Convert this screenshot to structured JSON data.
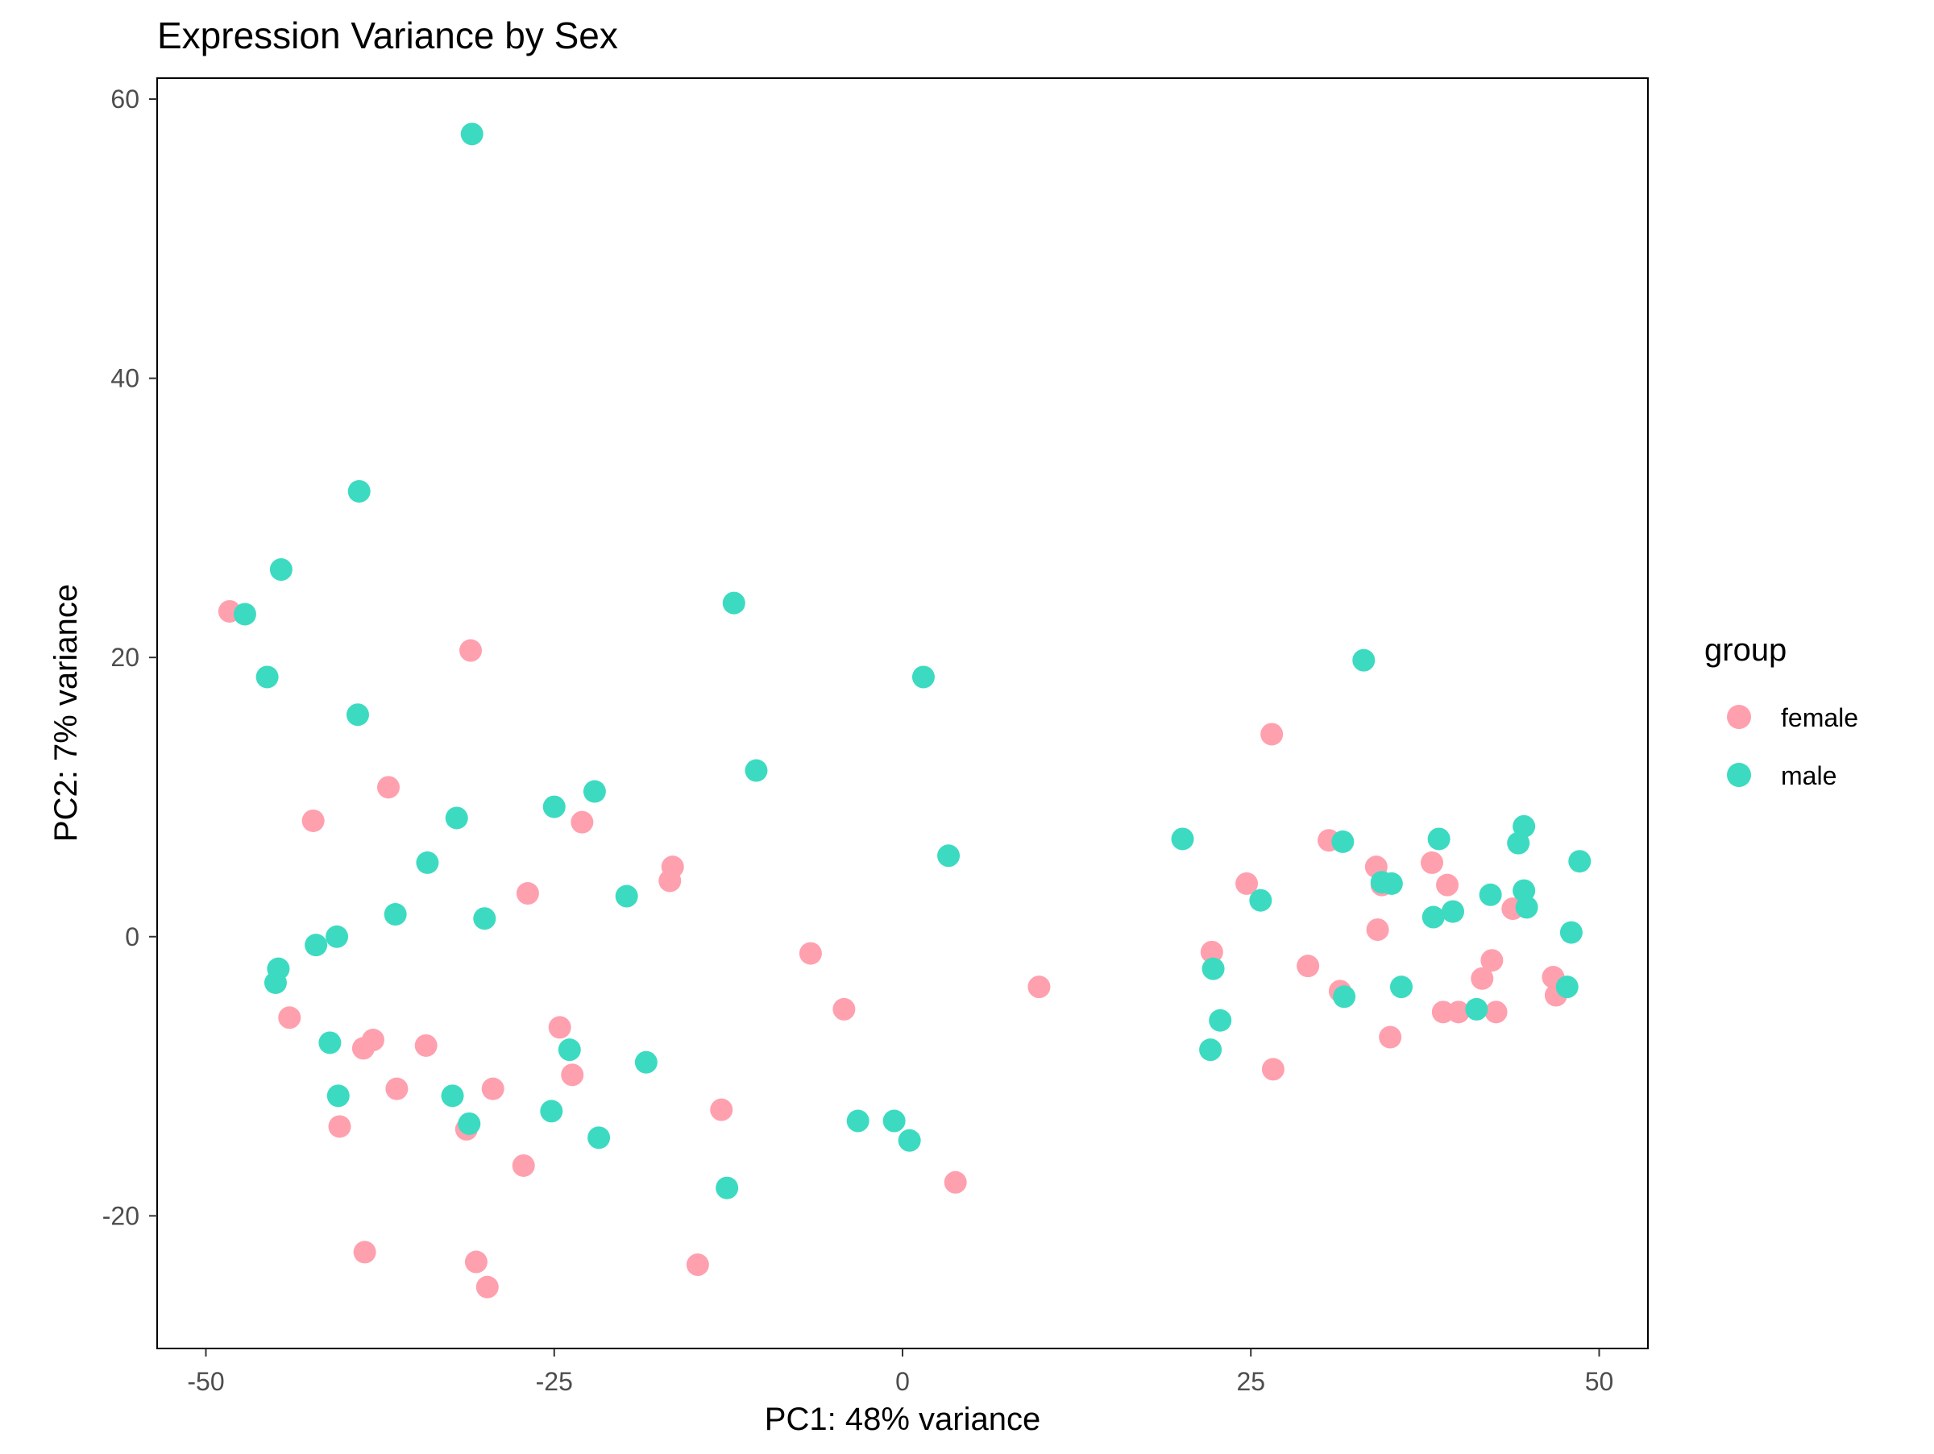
{
  "chart_data": {
    "type": "scatter",
    "title": "Expression Variance by Sex",
    "xlabel": "PC1: 48% variance",
    "ylabel": "PC2: 7% variance",
    "xlim": [
      -53.5,
      53.5
    ],
    "ylim": [
      -29.5,
      61.5
    ],
    "xticks": [
      -50,
      -25,
      0,
      25,
      50
    ],
    "yticks": [
      -20,
      0,
      20,
      40,
      60
    ],
    "grid": false,
    "legend": {
      "title": "group",
      "position": "right",
      "entries": [
        "female",
        "male"
      ]
    },
    "series": [
      {
        "name": "female",
        "color": "#FFA0AE",
        "points": [
          [
            -48.3,
            23.3
          ],
          [
            -31.0,
            20.5
          ],
          [
            -36.9,
            10.7
          ],
          [
            -42.3,
            8.3
          ],
          [
            -23.0,
            8.2
          ],
          [
            -16.5,
            5.0
          ],
          [
            -16.7,
            4.0
          ],
          [
            -26.9,
            3.1
          ],
          [
            -44.0,
            -5.8
          ],
          [
            -24.6,
            -6.5
          ],
          [
            -34.2,
            -7.8
          ],
          [
            -38.0,
            -7.4
          ],
          [
            -38.7,
            -8.0
          ],
          [
            -23.7,
            -9.9
          ],
          [
            -36.3,
            -10.9
          ],
          [
            -29.4,
            -10.9
          ],
          [
            -40.4,
            -13.6
          ],
          [
            -31.3,
            -13.8
          ],
          [
            -13.0,
            -12.4
          ],
          [
            -27.2,
            -16.4
          ],
          [
            -38.6,
            -22.6
          ],
          [
            -30.6,
            -23.3
          ],
          [
            -29.8,
            -25.1
          ],
          [
            -14.7,
            -23.5
          ],
          [
            -6.6,
            -1.2
          ],
          [
            -4.2,
            -5.2
          ],
          [
            9.8,
            -3.6
          ],
          [
            3.8,
            -17.6
          ],
          [
            26.5,
            14.5
          ],
          [
            30.6,
            6.9
          ],
          [
            24.7,
            3.8
          ],
          [
            34.0,
            5.0
          ],
          [
            34.4,
            3.7
          ],
          [
            38.0,
            5.3
          ],
          [
            39.1,
            3.7
          ],
          [
            39.5,
            1.8
          ],
          [
            34.1,
            0.5
          ],
          [
            43.8,
            2.0
          ],
          [
            22.2,
            -1.1
          ],
          [
            29.1,
            -2.1
          ],
          [
            31.4,
            -3.9
          ],
          [
            42.3,
            -1.7
          ],
          [
            41.6,
            -3.0
          ],
          [
            46.7,
            -2.9
          ],
          [
            46.9,
            -4.2
          ],
          [
            35.0,
            -7.2
          ],
          [
            38.8,
            -5.4
          ],
          [
            39.9,
            -5.4
          ],
          [
            42.6,
            -5.4
          ],
          [
            26.6,
            -9.5
          ]
        ]
      },
      {
        "name": "male",
        "color": "#3CDBC1",
        "points": [
          [
            -30.9,
            57.5
          ],
          [
            -39.0,
            31.9
          ],
          [
            -44.6,
            26.3
          ],
          [
            -47.2,
            23.1
          ],
          [
            -45.6,
            18.6
          ],
          [
            -39.1,
            15.9
          ],
          [
            -12.1,
            23.9
          ],
          [
            -10.5,
            11.9
          ],
          [
            -22.1,
            10.4
          ],
          [
            -25.0,
            9.3
          ],
          [
            -32.0,
            8.5
          ],
          [
            -34.1,
            5.3
          ],
          [
            -36.4,
            1.6
          ],
          [
            -30.0,
            1.3
          ],
          [
            -19.8,
            2.9
          ],
          [
            -40.6,
            0.0
          ],
          [
            -42.1,
            -0.6
          ],
          [
            -44.8,
            -2.3
          ],
          [
            -45.0,
            -3.3
          ],
          [
            -41.1,
            -7.6
          ],
          [
            -23.9,
            -8.1
          ],
          [
            -18.4,
            -9.0
          ],
          [
            -40.5,
            -11.4
          ],
          [
            -32.3,
            -11.4
          ],
          [
            -31.1,
            -13.4
          ],
          [
            -25.2,
            -12.5
          ],
          [
            -21.8,
            -14.4
          ],
          [
            -12.6,
            -18.0
          ],
          [
            1.5,
            18.6
          ],
          [
            3.3,
            5.8
          ],
          [
            -3.2,
            -13.2
          ],
          [
            -0.6,
            -13.2
          ],
          [
            0.5,
            -14.6
          ],
          [
            33.1,
            19.8
          ],
          [
            20.1,
            7.0
          ],
          [
            31.6,
            6.8
          ],
          [
            38.5,
            7.0
          ],
          [
            44.6,
            7.9
          ],
          [
            44.2,
            6.7
          ],
          [
            48.6,
            5.4
          ],
          [
            34.4,
            3.9
          ],
          [
            35.1,
            3.8
          ],
          [
            42.2,
            3.0
          ],
          [
            44.6,
            3.3
          ],
          [
            25.7,
            2.6
          ],
          [
            38.1,
            1.4
          ],
          [
            39.5,
            1.8
          ],
          [
            44.8,
            2.1
          ],
          [
            48.0,
            0.3
          ],
          [
            22.3,
            -2.3
          ],
          [
            31.7,
            -4.3
          ],
          [
            35.8,
            -3.6
          ],
          [
            47.7,
            -3.6
          ],
          [
            41.2,
            -5.2
          ],
          [
            22.8,
            -6.0
          ],
          [
            22.1,
            -8.1
          ]
        ]
      }
    ]
  }
}
